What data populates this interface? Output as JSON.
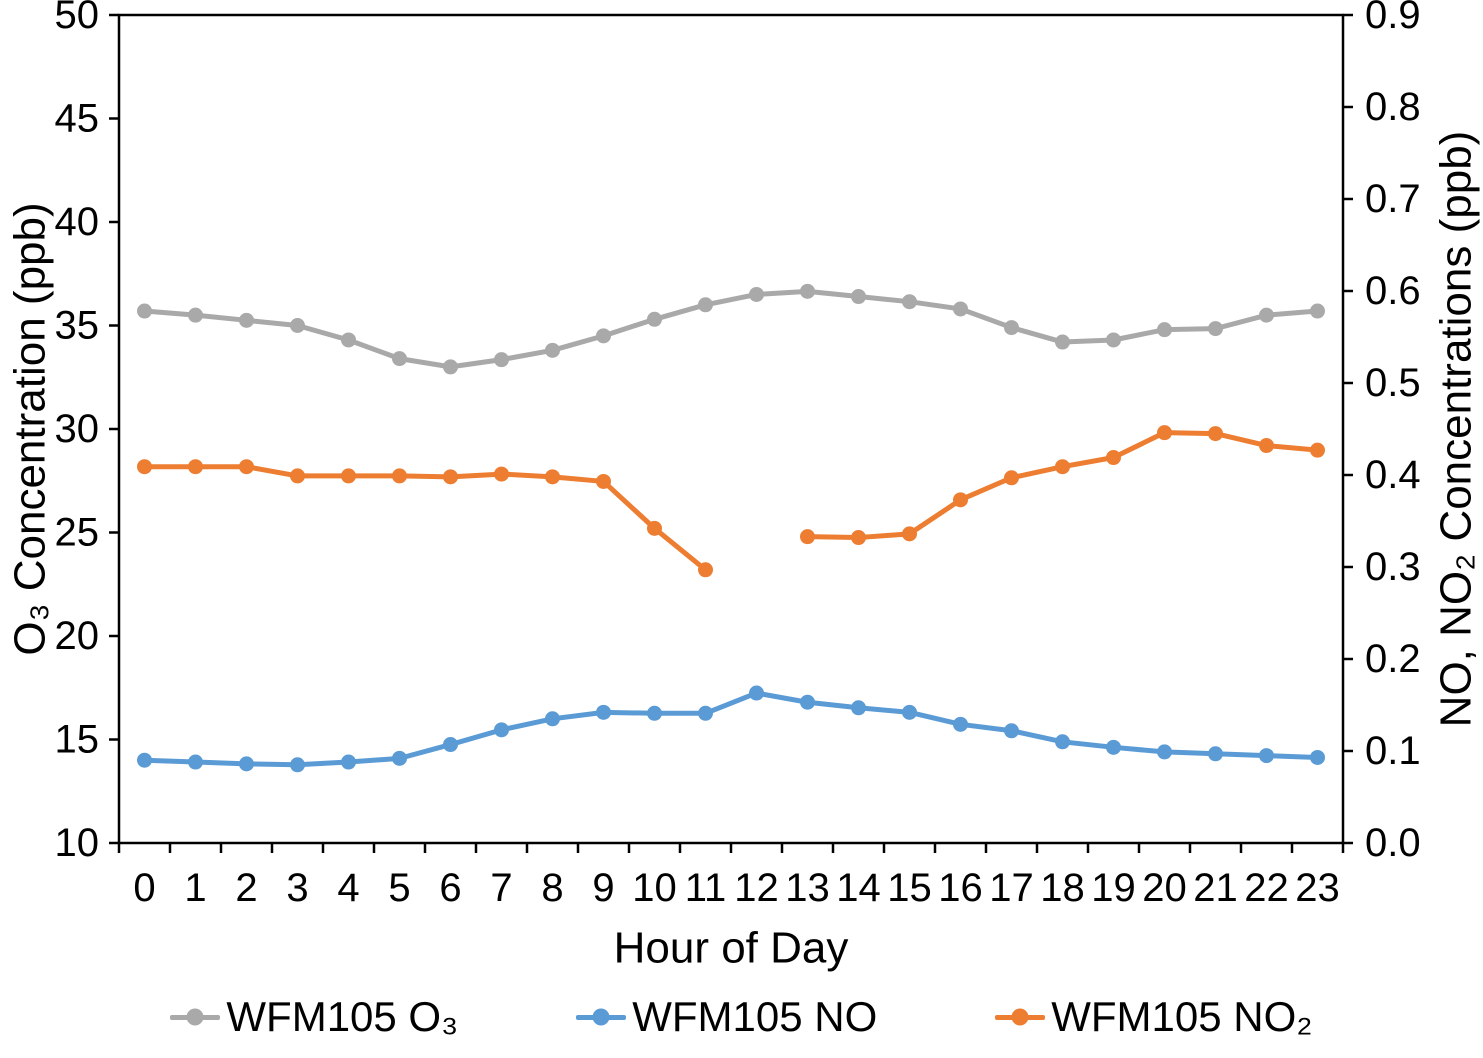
{
  "chart_data": {
    "type": "line",
    "title": "",
    "xlabel": "Hour of Day",
    "ylabel_left": "O₃ Concentration (ppb)",
    "ylabel_right": "NO, NO₂ Concentrations (ppb)",
    "categories": [
      0,
      1,
      2,
      3,
      4,
      5,
      6,
      7,
      8,
      9,
      10,
      11,
      12,
      13,
      14,
      15,
      16,
      17,
      18,
      19,
      20,
      21,
      22,
      23
    ],
    "left_axis": {
      "min": 10,
      "max": 50,
      "ticks": [
        50,
        45,
        40,
        35,
        30,
        25,
        20,
        15,
        10
      ]
    },
    "right_axis": {
      "min": 0.0,
      "max": 0.9,
      "ticks": [
        "0.9",
        "0.8",
        "0.7",
        "0.6",
        "0.5",
        "0.4",
        "0.3",
        "0.2",
        "0.1",
        "0.0"
      ]
    },
    "grid": false,
    "legend_position": "bottom",
    "series": [
      {
        "name": "WFM105 O₃",
        "axis": "left",
        "color": "#a9a9a9",
        "marker": "circle",
        "values": [
          35.7,
          35.5,
          35.25,
          35.0,
          34.3,
          33.4,
          33.0,
          33.35,
          33.8,
          34.5,
          35.3,
          36.0,
          36.5,
          36.65,
          36.4,
          36.15,
          35.8,
          34.9,
          34.2,
          34.3,
          34.8,
          34.85,
          35.5,
          35.7
        ]
      },
      {
        "name": "WFM105 NO",
        "axis": "right",
        "color": "#5b9bd5",
        "marker": "circle",
        "values": [
          0.09,
          0.088,
          0.086,
          0.085,
          0.088,
          0.092,
          0.107,
          0.123,
          0.135,
          0.142,
          0.141,
          0.141,
          0.163,
          0.153,
          0.147,
          0.142,
          0.129,
          0.122,
          0.11,
          0.104,
          0.099,
          0.097,
          0.095,
          0.093
        ]
      },
      {
        "name": "WFM105 NO₂",
        "axis": "right",
        "color": "#ed7d31",
        "marker": "circle",
        "values": [
          0.409,
          0.409,
          0.409,
          0.399,
          0.399,
          0.399,
          0.398,
          0.401,
          0.398,
          0.393,
          0.342,
          0.297,
          null,
          0.333,
          0.332,
          0.336,
          0.373,
          0.397,
          0.409,
          0.419,
          0.446,
          0.445,
          0.432,
          0.427
        ]
      }
    ]
  },
  "legend": {
    "items": [
      {
        "label": "WFM105 O₃"
      },
      {
        "label": "WFM105 NO"
      },
      {
        "label": "WFM105 NO₂"
      }
    ]
  }
}
